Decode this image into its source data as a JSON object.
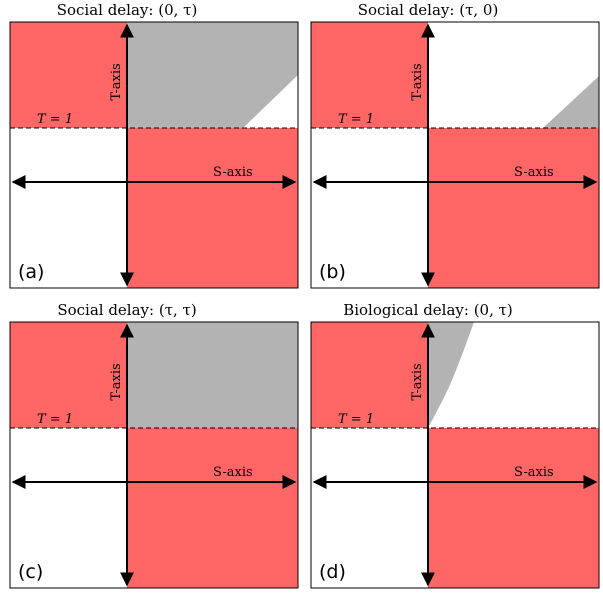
{
  "colors": {
    "region_red": "#ff6666",
    "region_gray": "#b3b3b3",
    "background": "#ffffff",
    "axis": "#000000"
  },
  "common_labels": {
    "t_axis": "T-axis",
    "s_axis": "S-axis",
    "threshold": "T = 1"
  },
  "panels": [
    {
      "title": "Social delay: (0, τ)",
      "label": "(a)",
      "gray_region": "upper-right-above-diagonal"
    },
    {
      "title": "Social delay: (τ, 0)",
      "label": "(b)",
      "gray_region": "small-wedge-right"
    },
    {
      "title": "Social delay: (τ, τ)",
      "label": "(c)",
      "gray_region": "full-upper-right"
    },
    {
      "title": "Biological delay: (0, τ)",
      "label": "(d)",
      "gray_region": "curved-sliver"
    }
  ]
}
